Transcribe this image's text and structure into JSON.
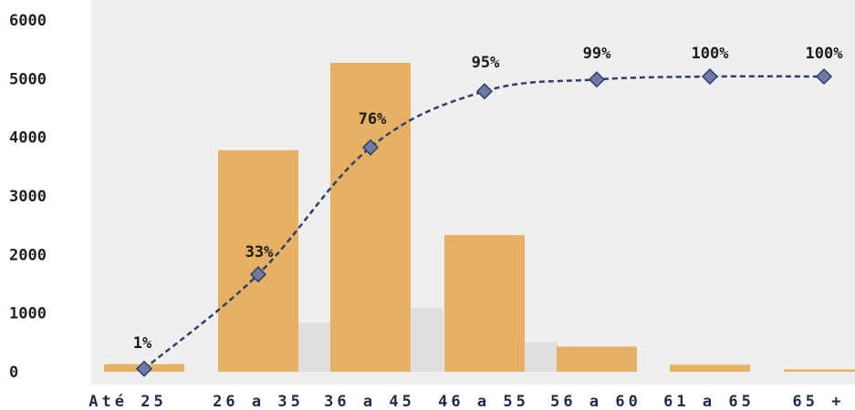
{
  "chart_data": {
    "type": "bar",
    "title": "",
    "xlabel": "",
    "ylabel": "",
    "categories": [
      "Até 25",
      "26 a 35",
      "36 a 45",
      "46 a 55",
      "56 a 60",
      "61 a 65",
      "65 +"
    ],
    "ylim": [
      0,
      6000
    ],
    "yticks": [
      "0",
      "1000",
      "2000",
      "3000",
      "4000",
      "5000",
      "6000"
    ],
    "grid": false,
    "legend": "none",
    "series": [
      {
        "type": "bar",
        "values": [
          130,
          3780,
          5270,
          2330,
          430,
          120,
          40
        ],
        "color": "#e8b063"
      },
      {
        "type": "line",
        "values": [
          1,
          33,
          76,
          95,
          99,
          100,
          100
        ],
        "labels": [
          "1%",
          "33%",
          "76%",
          "95%",
          "99%",
          "100%",
          "100%"
        ],
        "color": "#2d3e72",
        "style": "dashed",
        "marker": "diamond",
        "axis": "secondary",
        "ylim": [
          0,
          100
        ]
      }
    ]
  }
}
